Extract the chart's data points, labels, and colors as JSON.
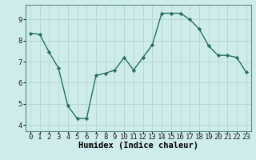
{
  "x": [
    0,
    1,
    2,
    3,
    4,
    5,
    6,
    7,
    8,
    9,
    10,
    11,
    12,
    13,
    14,
    15,
    16,
    17,
    18,
    19,
    20,
    21,
    22,
    23
  ],
  "y": [
    8.35,
    8.3,
    7.45,
    6.7,
    4.9,
    4.3,
    4.3,
    6.35,
    6.45,
    6.6,
    7.2,
    6.6,
    7.2,
    7.8,
    9.3,
    9.3,
    9.3,
    9.0,
    8.55,
    7.75,
    7.3,
    7.3,
    7.2,
    6.5
  ],
  "line_color": "#2a6e63",
  "marker": "D",
  "marker_size": 2.2,
  "bg_color": "#ceecea",
  "grid_color": "#b8d8d5",
  "xlabel": "Humidex (Indice chaleur)",
  "xlim": [
    -0.5,
    23.5
  ],
  "ylim": [
    3.7,
    9.7
  ],
  "yticks": [
    4,
    5,
    6,
    7,
    8,
    9
  ],
  "xticks": [
    0,
    1,
    2,
    3,
    4,
    5,
    6,
    7,
    8,
    9,
    10,
    11,
    12,
    13,
    14,
    15,
    16,
    17,
    18,
    19,
    20,
    21,
    22,
    23
  ],
  "tick_label_fontsize": 6.5,
  "xlabel_fontsize": 7.5,
  "line_width": 1.0,
  "spine_color": "#5a8a80"
}
